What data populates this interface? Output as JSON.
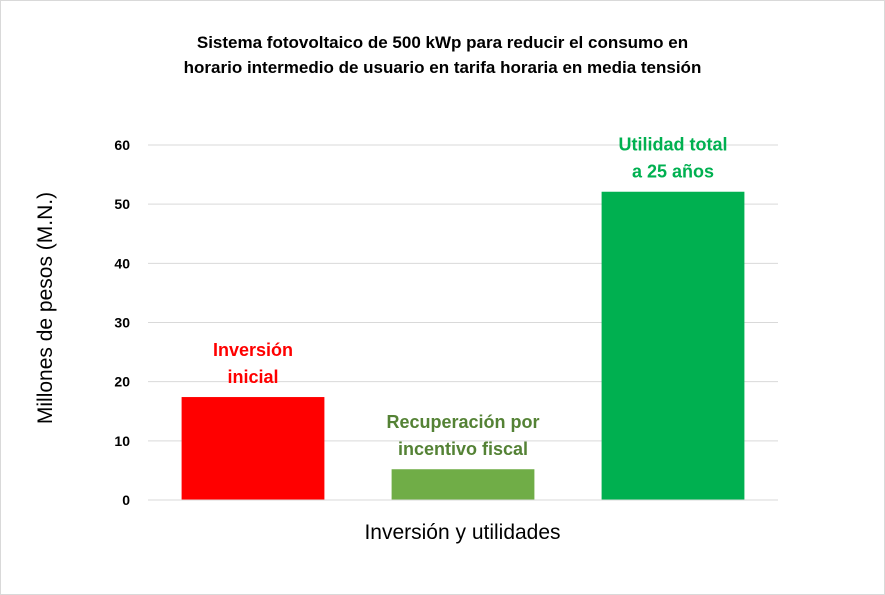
{
  "chart_data": {
    "type": "bar",
    "title_line1": "Sistema fotovoltaico de 500 kWp para reducir el consumo en",
    "title_line2": "horario intermedio de usuario en tarifa horaria en media tensión",
    "xlabel": "Inversión y utilidades",
    "ylabel": "Millones de pesos (M.N.)",
    "ylim": [
      0,
      60
    ],
    "yticks": [
      0,
      10,
      20,
      30,
      40,
      50,
      60
    ],
    "grid": true,
    "legend": "none",
    "categories": [
      "Inversión inicial",
      "Recuperación por incentivo fiscal",
      "Utilidad total a 25 años"
    ],
    "values": [
      17.4,
      5.2,
      52.1
    ],
    "bar_labels": [
      [
        "Inversión",
        "inicial"
      ],
      [
        "Recuperación por",
        "incentivo fiscal"
      ],
      [
        "Utilidad total",
        "a 25 años"
      ]
    ],
    "colors": [
      "#ff0000",
      "#70ad47",
      "#00b050"
    ],
    "label_colors": [
      "#ff0000",
      "#548235",
      "#00b050"
    ]
  }
}
